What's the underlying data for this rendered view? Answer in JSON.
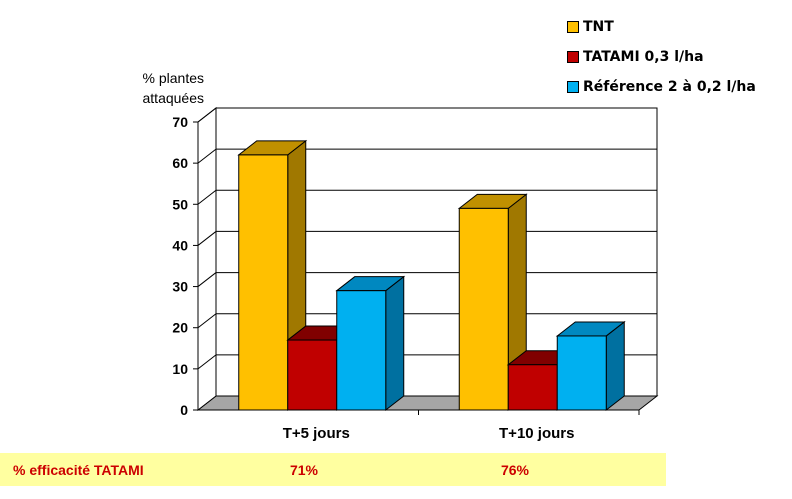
{
  "chart_data": {
    "type": "bar",
    "categories": [
      "T+5 jours",
      "T+10 jours"
    ],
    "series": [
      {
        "name": "TNT",
        "values": [
          62,
          49
        ],
        "color": "#ffc000",
        "top_color": "#c09000",
        "side_color": "#a07800"
      },
      {
        "name": "TATAMI 0,3 l/ha",
        "values": [
          17,
          11
        ],
        "color": "#c00000",
        "top_color": "#800000",
        "side_color": "#700000"
      },
      {
        "name": "Référence 2 à 0,2 l/ha",
        "values": [
          29,
          18
        ],
        "color": "#00b0f0",
        "top_color": "#0088c0",
        "side_color": "#0070a0"
      }
    ],
    "ylabel": "% plantes attaquées",
    "ylim": [
      0,
      70
    ],
    "yticks": [
      0,
      10,
      20,
      30,
      40,
      50,
      60,
      70
    ],
    "grid": true,
    "legend_position": "top-right",
    "three_d": true
  },
  "efficacy": {
    "label": "% efficacité TATAMI",
    "values": [
      "71%",
      "76%"
    ]
  }
}
